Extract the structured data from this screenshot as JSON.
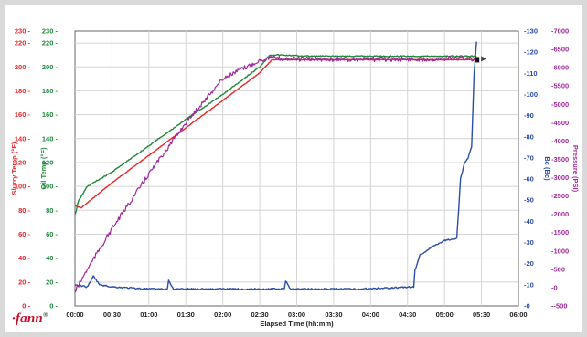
{
  "logo": {
    "text": "fann",
    "mark": "®"
  },
  "colors": {
    "slurry": "#e8262a",
    "oil": "#1f8a3c",
    "bc": "#2a4da8",
    "pressure": "#a0289c",
    "grid": "#d4d4d4"
  },
  "chart_data": {
    "type": "line",
    "xlabel": "Elapsed Time (hh:mm)",
    "x_ticks": [
      "00:00",
      "00:30",
      "01:00",
      "01:30",
      "02:00",
      "02:30",
      "03:00",
      "03:30",
      "04:00",
      "04:30",
      "05:00",
      "05:30",
      "06:00"
    ],
    "xlim_minutes": [
      0,
      360
    ],
    "grid": true,
    "axes": [
      {
        "id": "slurry",
        "label": "Slurry Temp (°F)",
        "side": "left",
        "min": 0,
        "max": 230,
        "ticks": [
          0,
          20,
          40,
          60,
          80,
          100,
          120,
          140,
          160,
          180,
          200,
          220,
          230
        ]
      },
      {
        "id": "oil",
        "label": "Oil Temp (°F)",
        "side": "left",
        "min": 0,
        "max": 230,
        "ticks": [
          0,
          20,
          40,
          60,
          80,
          100,
          120,
          140,
          160,
          180,
          200,
          220,
          230
        ]
      },
      {
        "id": "bc",
        "label": "Bc (Bc)",
        "side": "right",
        "min": 0,
        "max": 130,
        "ticks": [
          0,
          10,
          20,
          30,
          40,
          50,
          60,
          70,
          80,
          90,
          100,
          110,
          120,
          130
        ]
      },
      {
        "id": "pressure",
        "label": "Pressure (PSI)",
        "side": "right",
        "min": -500,
        "max": 7000,
        "ticks": [
          -500,
          0,
          500,
          1000,
          1500,
          2000,
          2500,
          3000,
          3500,
          4000,
          4500,
          5000,
          5500,
          6000,
          6500,
          7000
        ]
      }
    ],
    "series": [
      {
        "name": "Slurry Temp",
        "axis": "slurry",
        "x": [
          0,
          5,
          30,
          60,
          90,
          120,
          150,
          160,
          170,
          190,
          220,
          250,
          280,
          310,
          326
        ],
        "y": [
          84,
          82,
          103,
          126,
          149,
          172,
          195,
          206,
          206,
          206,
          206,
          206,
          206,
          206,
          206
        ]
      },
      {
        "name": "Oil Temp",
        "axis": "oil",
        "x": [
          0,
          3,
          10,
          30,
          60,
          90,
          120,
          150,
          158,
          165,
          190,
          220,
          250,
          280,
          310,
          326
        ],
        "y": [
          76,
          88,
          100,
          112,
          134,
          156,
          177,
          200,
          210,
          210,
          209,
          209,
          209,
          209,
          209,
          209
        ]
      },
      {
        "name": "Bc",
        "axis": "bc",
        "x": [
          0,
          10,
          15,
          20,
          30,
          60,
          75,
          76,
          80,
          120,
          150,
          170,
          171,
          175,
          230,
          275,
          276,
          280,
          290,
          300,
          310,
          313,
          316,
          319,
          322,
          324,
          326
        ],
        "y": [
          10,
          9,
          14,
          10,
          9,
          8,
          8,
          12,
          8,
          8,
          8,
          8,
          12,
          8,
          8,
          9,
          17,
          24,
          28,
          31,
          32,
          60,
          67,
          70,
          75,
          110,
          125
        ]
      },
      {
        "name": "Pressure",
        "axis": "pressure",
        "x": [
          0,
          10,
          30,
          60,
          90,
          120,
          150,
          158,
          165,
          190,
          220,
          250,
          280,
          310,
          326
        ],
        "y": [
          -120,
          500,
          1600,
          3100,
          4500,
          5700,
          6200,
          6280,
          6250,
          6230,
          6230,
          6230,
          6230,
          6260,
          6230
        ]
      }
    ]
  }
}
